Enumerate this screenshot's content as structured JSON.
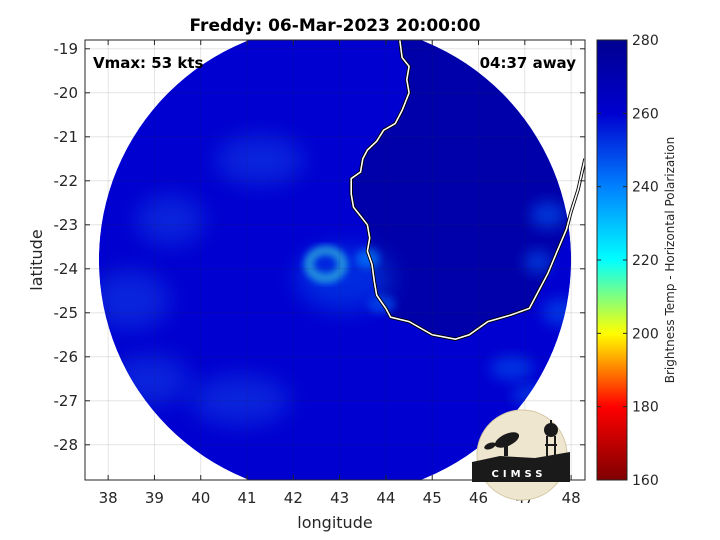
{
  "chart_data": {
    "type": "heatmap",
    "title": "Freddy: 06-Mar-2023 20:00:00",
    "xlabel": "longitude",
    "ylabel": "latitude",
    "xlim": [
      37.5,
      48.3
    ],
    "ylim": [
      -28.8,
      -18.8
    ],
    "xticks": [
      38,
      39,
      40,
      41,
      42,
      43,
      44,
      45,
      46,
      47,
      48
    ],
    "yticks": [
      -19,
      -20,
      -21,
      -22,
      -23,
      -24,
      -25,
      -26,
      -27,
      -28
    ],
    "grid": true,
    "annotations": {
      "vmax": "Vmax: 53 kts",
      "time_away": "04:37 away"
    },
    "colorbar": {
      "label": "Brightness Temp - Horizontal Polarization",
      "min": 160,
      "max": 280,
      "ticks": [
        280,
        260,
        240,
        220,
        200,
        180,
        160
      ],
      "colormap": "jet",
      "stops": [
        "#7f0000",
        "#ff0000",
        "#ffff00",
        "#00ffff",
        "#0080ff",
        "#0000d0",
        "#000090"
      ]
    },
    "storm_center": {
      "lon": 42.7,
      "lat": -23.9
    },
    "swath": {
      "center_lon": 42.9,
      "center_lat": -23.8,
      "radius_deg": 5.1
    },
    "fields": {
      "background_tb": 260,
      "land_tb": 272,
      "eyewall_tb": 238,
      "outer_band_tb": 248
    },
    "coastline": [
      [
        44.3,
        -18.8
      ],
      [
        44.35,
        -19.2
      ],
      [
        44.5,
        -19.4
      ],
      [
        44.45,
        -19.7
      ],
      [
        44.5,
        -20.0
      ],
      [
        44.35,
        -20.4
      ],
      [
        44.2,
        -20.7
      ],
      [
        43.95,
        -20.85
      ],
      [
        43.8,
        -21.1
      ],
      [
        43.6,
        -21.3
      ],
      [
        43.5,
        -21.5
      ],
      [
        43.45,
        -21.8
      ],
      [
        43.25,
        -21.95
      ],
      [
        43.25,
        -22.3
      ],
      [
        43.3,
        -22.6
      ],
      [
        43.45,
        -22.8
      ],
      [
        43.6,
        -23.0
      ],
      [
        43.65,
        -23.3
      ],
      [
        43.6,
        -23.6
      ],
      [
        43.7,
        -23.9
      ],
      [
        43.75,
        -24.3
      ],
      [
        43.8,
        -24.6
      ],
      [
        44.0,
        -24.9
      ],
      [
        44.1,
        -25.1
      ],
      [
        44.5,
        -25.2
      ],
      [
        45.0,
        -25.5
      ],
      [
        45.5,
        -25.6
      ],
      [
        45.8,
        -25.5
      ],
      [
        46.2,
        -25.2
      ],
      [
        46.7,
        -25.05
      ],
      [
        47.1,
        -24.9
      ],
      [
        47.3,
        -24.5
      ],
      [
        47.5,
        -24.1
      ],
      [
        47.7,
        -23.6
      ],
      [
        47.9,
        -23.1
      ],
      [
        48.0,
        -22.7
      ],
      [
        48.15,
        -22.2
      ],
      [
        48.3,
        -21.5
      ]
    ]
  },
  "logo": {
    "text": "CIMSS"
  }
}
